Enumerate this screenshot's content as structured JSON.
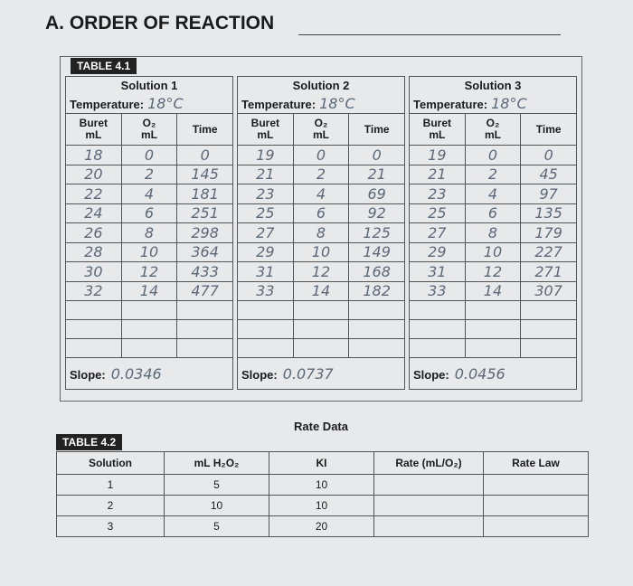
{
  "heading": "A. ORDER OF REACTION",
  "table_4_1": {
    "label": "TABLE 4.1",
    "solutions": [
      {
        "name": "Solution 1",
        "temperature_label": "Temperature:",
        "temperature": "18°C",
        "columns": [
          {
            "line1": "Buret",
            "line2": "mL"
          },
          {
            "line1": "O₂",
            "line2": "mL"
          },
          {
            "line1": "Time"
          }
        ],
        "rows": [
          [
            18,
            0,
            0
          ],
          [
            20,
            2,
            145
          ],
          [
            22,
            4,
            181
          ],
          [
            24,
            6,
            251
          ],
          [
            26,
            8,
            298
          ],
          [
            28,
            10,
            364
          ],
          [
            30,
            12,
            433
          ],
          [
            32,
            14,
            477
          ]
        ],
        "slope_label": "Slope:",
        "slope": "0.0346"
      },
      {
        "name": "Solution 2",
        "temperature_label": "Temperature:",
        "temperature": "18°C",
        "columns": [
          {
            "line1": "Buret",
            "line2": "mL"
          },
          {
            "line1": "O₂",
            "line2": "mL"
          },
          {
            "line1": "Time"
          }
        ],
        "rows": [
          [
            19,
            0,
            0
          ],
          [
            21,
            2,
            21
          ],
          [
            23,
            4,
            69
          ],
          [
            25,
            6,
            92
          ],
          [
            27,
            8,
            125
          ],
          [
            29,
            10,
            149
          ],
          [
            31,
            12,
            168
          ],
          [
            33,
            14,
            182
          ]
        ],
        "slope_label": "Slope:",
        "slope": "0.0737"
      },
      {
        "name": "Solution 3",
        "temperature_label": "Temperature:",
        "temperature": "18°C",
        "columns": [
          {
            "line1": "Buret",
            "line2": "mL"
          },
          {
            "line1": "O₂",
            "line2": "mL"
          },
          {
            "line1": "Time"
          }
        ],
        "rows": [
          [
            19,
            0,
            0
          ],
          [
            21,
            2,
            45
          ],
          [
            23,
            4,
            97
          ],
          [
            25,
            6,
            135
          ],
          [
            27,
            8,
            179
          ],
          [
            29,
            10,
            227
          ],
          [
            31,
            12,
            271
          ],
          [
            33,
            14,
            307
          ]
        ],
        "slope_label": "Slope:",
        "slope": "0.0456"
      }
    ]
  },
  "table_4_2": {
    "caption": "Rate Data",
    "label": "TABLE 4.2",
    "columns": [
      "Solution",
      "mL H₂O₂",
      "KI",
      "Rate (mL/O₂)",
      "Rate Law"
    ],
    "rows": [
      [
        1,
        5,
        10
      ],
      [
        2,
        10,
        10
      ],
      [
        3,
        5,
        20
      ]
    ]
  }
}
